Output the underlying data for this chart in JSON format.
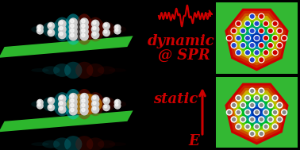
{
  "background_color": "#000000",
  "text_color": "#cc0000",
  "title_dynamic": "dynamic",
  "title_at_spr": "@ SPR",
  "title_static": "static",
  "title_e": "E",
  "fig_width": 3.78,
  "fig_height": 1.89,
  "dpi": 100,
  "wave_color": "#cc0000",
  "arrow_color": "#cc0000",
  "green_bg": "#33b833",
  "panel_edge": "#111111",
  "colors_dynamic_atoms": [
    "#cc0000",
    "#2244cc"
  ],
  "colors_static_atoms": [
    "#ffffff",
    "#aaaaaa"
  ],
  "heatmap_colors": [
    "#0000aa",
    "#0055dd",
    "#00aaff",
    "#00dddd",
    "#22cc22",
    "#aacc00",
    "#ddaa00",
    "#cc4400",
    "#cc0000"
  ],
  "cluster_cyan": "#00ccdd",
  "cluster_red": "#aa1100",
  "cluster_gray": "#cccccc",
  "plane_green": "#33cc33"
}
